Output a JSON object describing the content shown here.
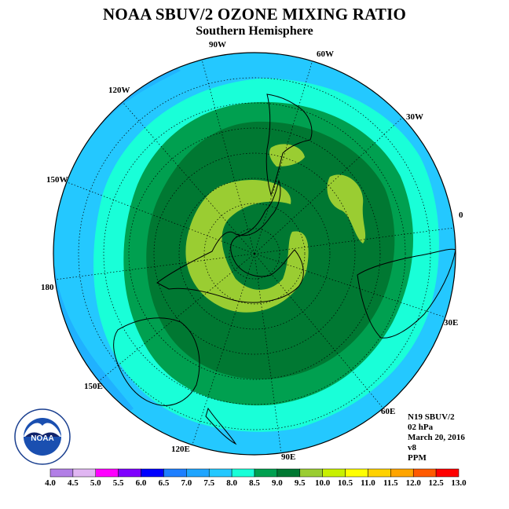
{
  "title": "NOAA SBUV/2 OZONE MIXING RATIO",
  "subtitle": "Southern Hemisphere",
  "longitude_labels": {
    "w90": "90W",
    "w60": "60W",
    "w30": "30W",
    "zero": "0",
    "w120": "120W",
    "w150": "150W",
    "lon180": "180",
    "e30": "30E",
    "e60": "60E",
    "e90": "90E",
    "e120": "120E",
    "e150": "150E"
  },
  "info": {
    "satellite": "N19 SBUV/2",
    "level": "02 hPa",
    "date": "March 20, 2016",
    "version": "v8",
    "units": "PPM"
  },
  "colorbar": {
    "labels": [
      "4.0",
      "4.5",
      "5.0",
      "5.5",
      "6.0",
      "6.5",
      "7.0",
      "7.5",
      "8.0",
      "8.5",
      "9.0",
      "9.5",
      "10.0",
      "10.5",
      "11.0",
      "11.5",
      "12.0",
      "12.5",
      "13.0"
    ],
    "colors": [
      "#b27fe6",
      "#e0b6f2",
      "#ff00ff",
      "#7f00ff",
      "#0000ff",
      "#1e7fff",
      "#1fa5ff",
      "#24c8ff",
      "#19ffd8",
      "#00a050",
      "#007832",
      "#9acd32",
      "#c8f000",
      "#ffff00",
      "#ffd200",
      "#ffa500",
      "#ff5a00",
      "#ff0000",
      "#a0522d"
    ]
  },
  "map_fields": {
    "bg_color": "#4fc9f2",
    "band_colors": [
      "#24c8ff",
      "#19ffd8",
      "#00a050",
      "#007832",
      "#9acd32",
      "#007832"
    ]
  },
  "logo_text": "NOAA",
  "icons": [
    "noaa-logo-icon"
  ]
}
